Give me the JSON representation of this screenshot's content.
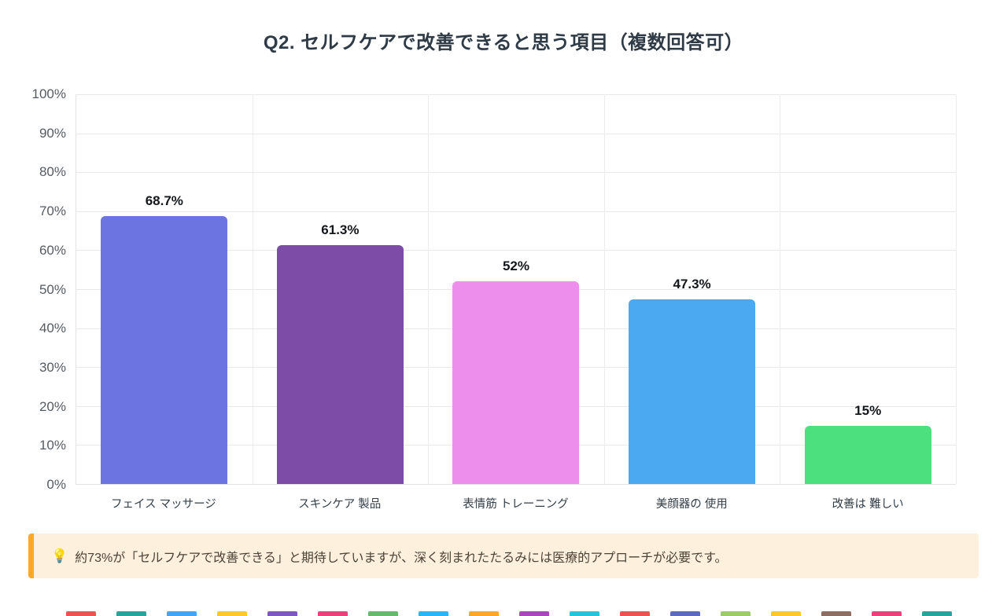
{
  "chart_data": {
    "type": "bar",
    "title": "Q2. セルフケアで改善できると思う項目（複数回答可）",
    "categories": [
      "フェイス マッサージ",
      "スキンケア 製品",
      "表情筋 トレーニング",
      "美顔器の 使用",
      "改善は 難しい"
    ],
    "values": [
      68.7,
      61.3,
      52,
      47.3,
      15
    ],
    "value_labels": [
      "68.7%",
      "61.3%",
      "52%",
      "47.3%",
      "15%"
    ],
    "bar_colors": [
      "#6b74e0",
      "#7d4ca6",
      "#ee8eec",
      "#4aa9f0",
      "#4ce07e"
    ],
    "xlabel": "",
    "ylabel": "",
    "ylim": [
      0,
      100
    ],
    "y_tick_step": 10,
    "y_tick_labels": [
      "0%",
      "10%",
      "20%",
      "30%",
      "40%",
      "50%",
      "60%",
      "70%",
      "80%",
      "90%",
      "100%"
    ],
    "grid": true,
    "legend": "none"
  },
  "note": {
    "icon": "💡",
    "text": "約73%が「セルフケアで改善できる」と期待していますが、深く刻まれたたるみには医療的アプローチが必要です。"
  },
  "decor": {
    "bottom_strip_colors": [
      "#ef5350",
      "#26a69a",
      "#42a5f5",
      "#ffca28",
      "#7e57c2",
      "#ec407a",
      "#66bb6a",
      "#29b6f6",
      "#ffa726",
      "#ab47bc",
      "#26c6da",
      "#ef5350",
      "#5c6bc0",
      "#9ccc65",
      "#ffca28",
      "#8d6e63",
      "#ec407a",
      "#26a69a"
    ]
  }
}
